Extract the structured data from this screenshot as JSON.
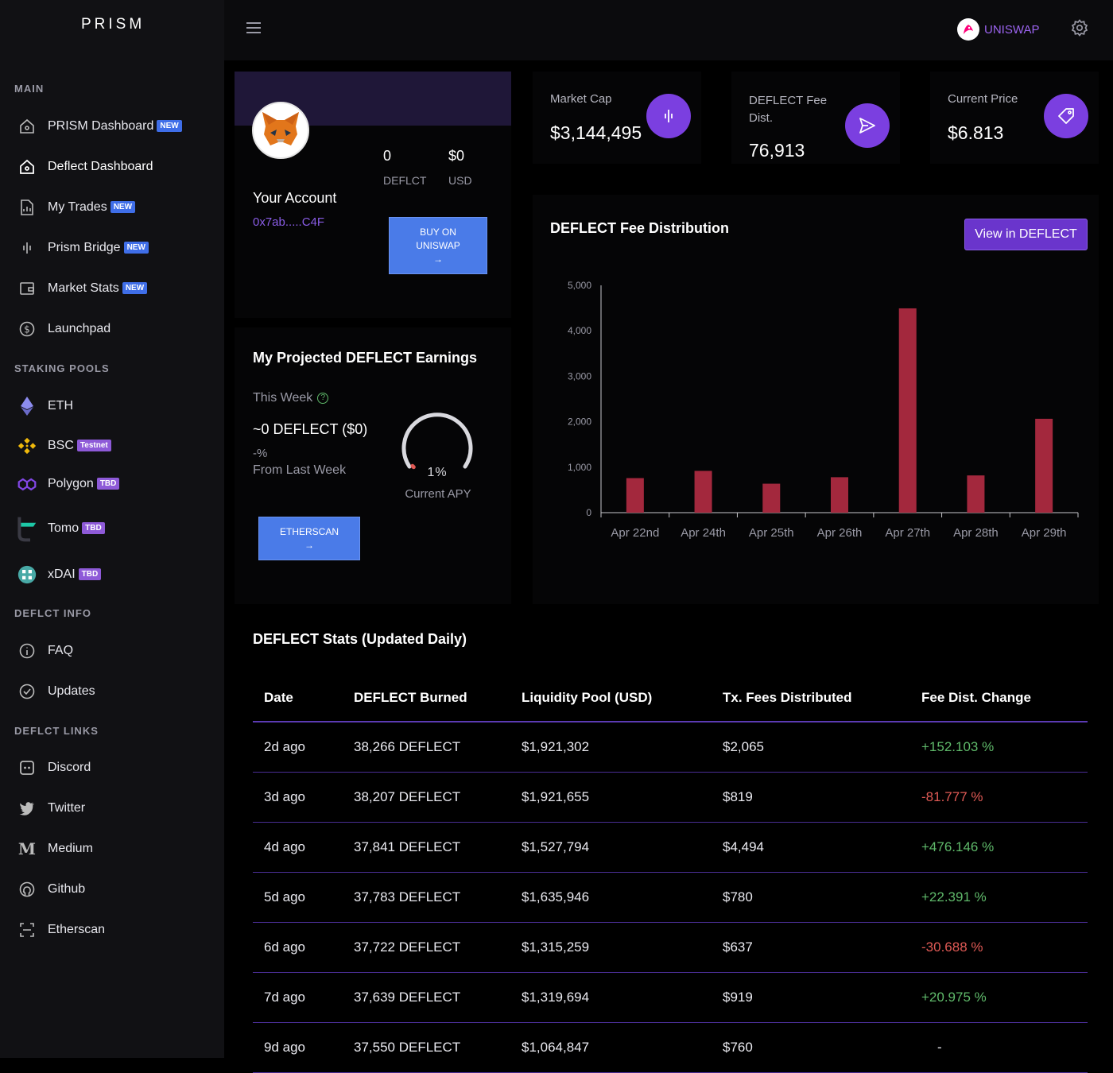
{
  "app": {
    "title": "PRISM"
  },
  "header": {
    "uniswap_label": "UNISWAP"
  },
  "sidebar": {
    "sections": {
      "main": "MAIN",
      "staking": "STAKING POOLS",
      "info": "DEFLCT INFO",
      "links": "DEFLCT LINKS"
    },
    "main_items": [
      {
        "label": "PRISM Dashboard",
        "badge": "NEW",
        "icon": "home-icon"
      },
      {
        "label": "Deflect Dashboard",
        "badge": "",
        "icon": "home-icon"
      },
      {
        "label": "My Trades",
        "badge": "NEW",
        "icon": "document-icon"
      },
      {
        "label": "Prism Bridge",
        "badge": "NEW",
        "icon": "waveform-icon"
      },
      {
        "label": "Market Stats",
        "badge": "NEW",
        "icon": "wallet-icon"
      },
      {
        "label": "Launchpad",
        "badge": "",
        "icon": "dollar-icon"
      }
    ],
    "staking_items": [
      {
        "label": "ETH",
        "badge": "",
        "icon": "eth-icon"
      },
      {
        "label": "BSC",
        "badge": "Testnet",
        "icon": "bsc-icon"
      },
      {
        "label": "Polygon",
        "badge": "TBD",
        "icon": "polygon-icon"
      },
      {
        "label": "Tomo",
        "badge": "TBD",
        "icon": "tomo-icon"
      },
      {
        "label": "xDAI",
        "badge": "TBD",
        "icon": "xdai-icon"
      }
    ],
    "info_items": [
      {
        "label": "FAQ",
        "icon": "info-icon"
      },
      {
        "label": "Updates",
        "icon": "check-circle-icon"
      }
    ],
    "link_items": [
      {
        "label": "Discord",
        "icon": "discord-icon"
      },
      {
        "label": "Twitter",
        "icon": "twitter-icon"
      },
      {
        "label": "Medium",
        "icon": "medium-icon"
      },
      {
        "label": "Github",
        "icon": "github-icon"
      },
      {
        "label": "Etherscan",
        "icon": "etherscan-icon"
      }
    ]
  },
  "account": {
    "deflct_value": "0",
    "deflct_label": "DEFLCT",
    "usd_value": "$0",
    "usd_label": "USD",
    "title": "Your Account",
    "address": "0x7ab.....C4F",
    "buy_line1": "BUY ON",
    "buy_line2": "UNISWAP",
    "buy_arrow": "→"
  },
  "earnings": {
    "title": "My Projected DEFLECT Earnings",
    "week_label": "This Week",
    "amount": "~0 DEFLECT ($0)",
    "change": "-%",
    "change_label": "From Last Week",
    "apy_value": "1%",
    "apy_label": "Current APY",
    "apy_fraction": 0.01,
    "etherscan_label": "ETHERSCAN",
    "etherscan_arrow": "→"
  },
  "stats": {
    "market_cap_label": "Market Cap",
    "market_cap_value": "$3,144,495",
    "fee_dist_label_1": "DEFLECT Fee",
    "fee_dist_label_2": "Dist.",
    "fee_dist_value": "76,913",
    "price_label": "Current Price",
    "price_value": "$6.813"
  },
  "chart_section": {
    "title": "DEFLECT Fee Distribution",
    "button": "View in DEFLECT"
  },
  "chart_data": {
    "type": "bar",
    "categories": [
      "Apr 22nd",
      "Apr 24th",
      "Apr 25th",
      "Apr 26th",
      "Apr 27th",
      "Apr 28th",
      "Apr 29th"
    ],
    "values": [
      760,
      919,
      637,
      780,
      4494,
      819,
      2065
    ],
    "ylim": [
      0,
      5000
    ],
    "yticks": [
      "0",
      "1,000",
      "2,000",
      "3,000",
      "4,000",
      "5,000"
    ],
    "ytick_values": [
      0,
      1000,
      2000,
      3000,
      4000,
      5000
    ],
    "color": "#a3283d",
    "title": "",
    "xlabel": "",
    "ylabel": ""
  },
  "table": {
    "title": "DEFLECT Stats (Updated Daily)",
    "headers": [
      "Date",
      "DEFLECT Burned",
      "Liquidity Pool (USD)",
      "Tx. Fees Distributed",
      "Fee Dist. Change"
    ],
    "rows": [
      [
        "2d ago",
        "38,266 DEFLECT",
        "$1,921,302",
        "$2,065",
        "+152.103 %"
      ],
      [
        "3d ago",
        "38,207 DEFLECT",
        "$1,921,655",
        "$819",
        "-81.777 %"
      ],
      [
        "4d ago",
        "37,841 DEFLECT",
        "$1,527,794",
        "$4,494",
        "+476.146 %"
      ],
      [
        "5d ago",
        "37,783 DEFLECT",
        "$1,635,946",
        "$780",
        "+22.391 %"
      ],
      [
        "6d ago",
        "37,722 DEFLECT",
        "$1,315,259",
        "$637",
        "-30.688 %"
      ],
      [
        "7d ago",
        "37,639 DEFLECT",
        "$1,319,694",
        "$919",
        "+20.975 %"
      ],
      [
        "9d ago",
        "37,550 DEFLECT",
        "$1,064,847",
        "$760",
        "-"
      ]
    ]
  },
  "colors": {
    "accent": "#7b3fe0",
    "button_blue": "#4a7be8",
    "positive": "#5fb96a",
    "negative": "#e05a55",
    "bar": "#a3283d"
  }
}
